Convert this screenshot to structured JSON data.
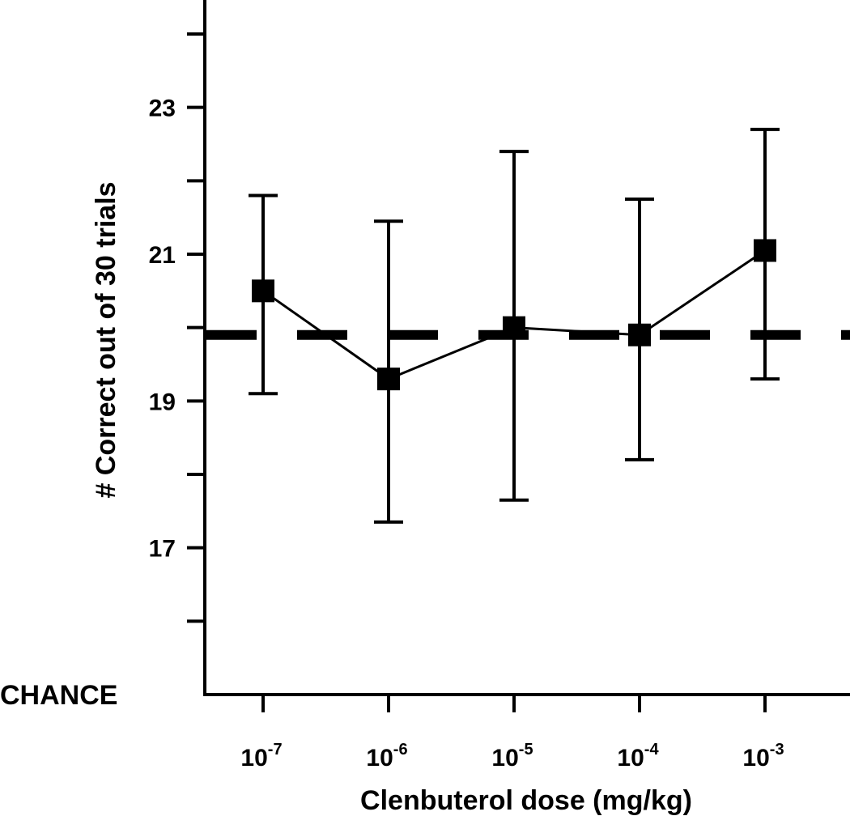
{
  "chart_data": {
    "type": "line",
    "xlabel": "Clenbuterol dose (mg/kg)",
    "ylabel": "# Correct out of 30 trials",
    "x_tick_labels": [
      {
        "base": "10",
        "exp": "-7"
      },
      {
        "base": "10",
        "exp": "-6"
      },
      {
        "base": "10",
        "exp": "-5"
      },
      {
        "base": "10",
        "exp": "-4"
      },
      {
        "base": "10",
        "exp": "-3"
      }
    ],
    "ylim": [
      15,
      24
    ],
    "y_ticks": [
      15,
      16,
      17,
      18,
      19,
      20,
      21,
      22,
      23,
      24
    ],
    "y_tick_labels": [
      {
        "value": 17,
        "label": "17"
      },
      {
        "value": 19,
        "label": "19"
      },
      {
        "value": 21,
        "label": "21"
      },
      {
        "value": 23,
        "label": "23"
      }
    ],
    "y_bottom_label": "CHANCE",
    "series": [
      {
        "values": [
          20.5,
          19.3,
          20.0,
          19.9,
          21.05
        ],
        "error_upper": [
          21.8,
          21.45,
          22.4,
          21.75,
          22.7
        ],
        "error_lower": [
          19.1,
          17.35,
          17.65,
          18.2,
          19.3
        ]
      }
    ],
    "reference_line": {
      "value": 19.9,
      "style": "dashed"
    },
    "grid": false
  }
}
